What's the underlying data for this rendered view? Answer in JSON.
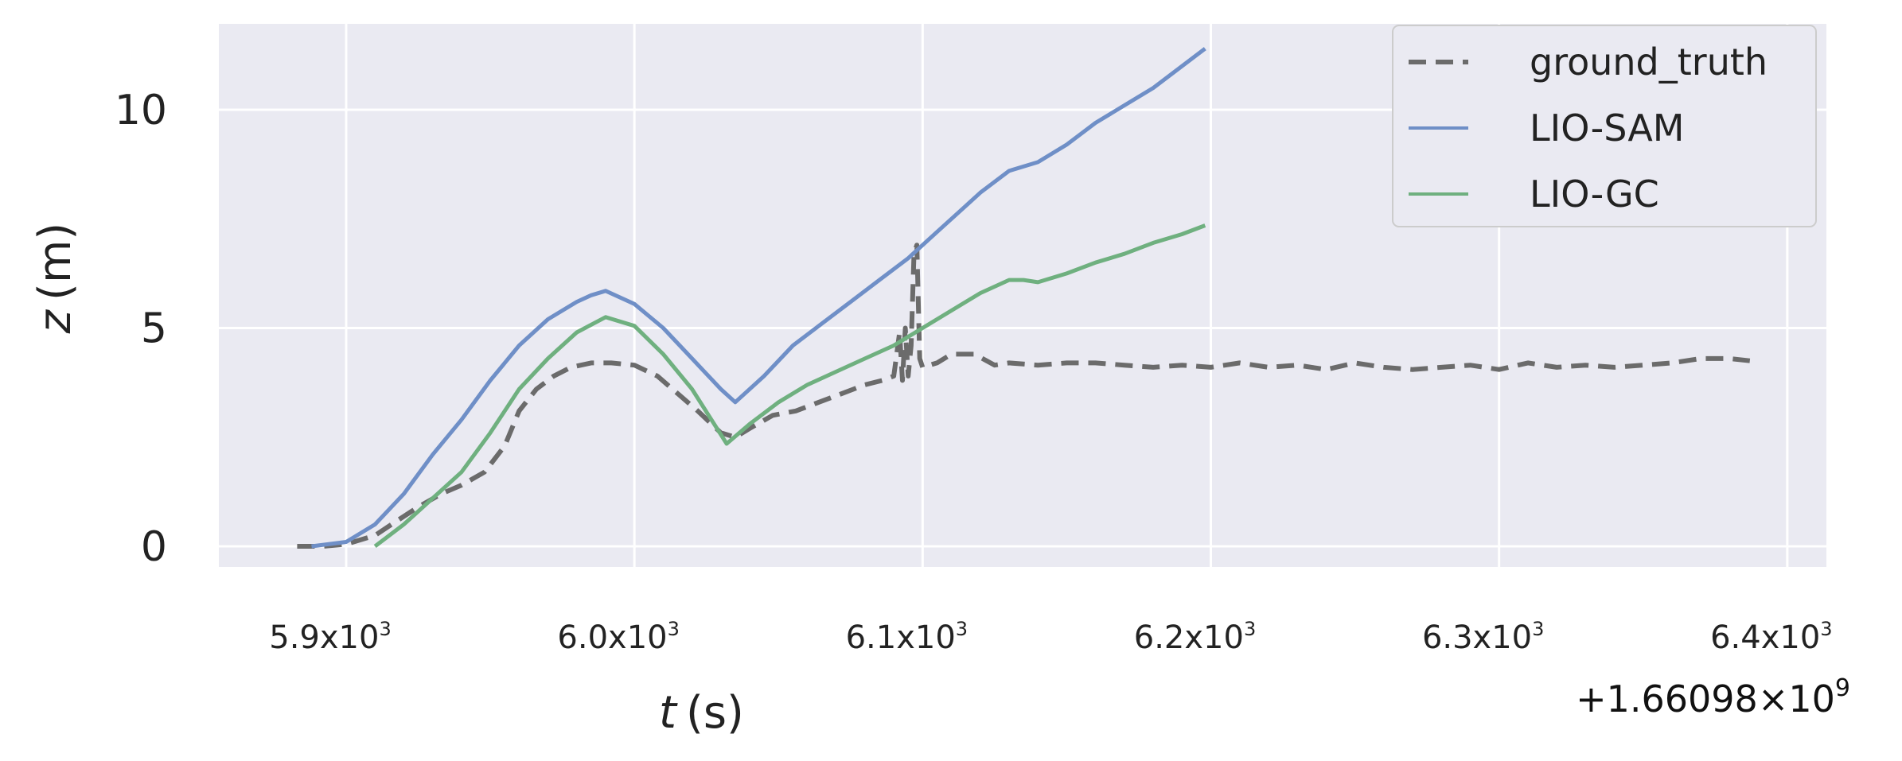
{
  "chart_data": {
    "type": "line",
    "xlabel": "t (s)",
    "xlabel_var": "t",
    "xlabel_unit": "(s)",
    "ylabel": "z (m)",
    "ylabel_var": "z",
    "ylabel_unit": "(m)",
    "x_offset_label": "+1.66098×10",
    "x_offset_exp": "9",
    "xlim": [
      5860,
      6410
    ],
    "ylim": [
      -0.5,
      12.0
    ],
    "grid": true,
    "legend_position": "top-right",
    "y_ticks": [
      {
        "value": 0,
        "label": "0"
      },
      {
        "value": 5,
        "label": "5"
      },
      {
        "value": 10,
        "label": "10"
      }
    ],
    "x_ticks": [
      {
        "value": 5900,
        "label": "5.9x10",
        "exp": "3"
      },
      {
        "value": 6000,
        "label": "6.0x10",
        "exp": "3"
      },
      {
        "value": 6100,
        "label": "6.1x10",
        "exp": "3"
      },
      {
        "value": 6200,
        "label": "6.2x10",
        "exp": "3"
      },
      {
        "value": 6300,
        "label": "6.3x10",
        "exp": "3"
      },
      {
        "value": 6400,
        "label": "6.4x10",
        "exp": "3"
      }
    ],
    "series": [
      {
        "name": "ground_truth",
        "color": "#6b6b6b",
        "dash": true,
        "x": [
          5883,
          5892,
          5900,
          5910,
          5918,
          5925,
          5933,
          5940,
          5948,
          5955,
          5960,
          5966,
          5972,
          5978,
          5985,
          5992,
          6000,
          6008,
          6015,
          6022,
          6030,
          6035,
          6040,
          6048,
          6056,
          6064,
          6072,
          6080,
          6086,
          6090,
          6092,
          6093,
          6094,
          6095,
          6096,
          6097,
          6098,
          6099,
          6100,
          6105,
          6110,
          6118,
          6125,
          6130,
          6140,
          6150,
          6160,
          6170,
          6180,
          6190,
          6200,
          6210,
          6220,
          6230,
          6240,
          6250,
          6260,
          6270,
          6280,
          6290,
          6300,
          6310,
          6320,
          6330,
          6340,
          6350,
          6360,
          6370,
          6380,
          6387
        ],
        "y": [
          0.0,
          0.0,
          0.05,
          0.25,
          0.6,
          0.9,
          1.2,
          1.4,
          1.7,
          2.3,
          3.1,
          3.6,
          3.9,
          4.1,
          4.2,
          4.2,
          4.15,
          3.9,
          3.5,
          3.1,
          2.6,
          2.5,
          2.7,
          3.0,
          3.1,
          3.3,
          3.5,
          3.7,
          3.8,
          3.9,
          4.9,
          3.8,
          5.0,
          3.9,
          4.6,
          6.7,
          6.9,
          4.3,
          4.1,
          4.2,
          4.4,
          4.4,
          4.15,
          4.2,
          4.15,
          4.2,
          4.2,
          4.15,
          4.1,
          4.15,
          4.1,
          4.2,
          4.1,
          4.15,
          4.05,
          4.2,
          4.1,
          4.05,
          4.1,
          4.15,
          4.05,
          4.2,
          4.1,
          4.15,
          4.1,
          4.15,
          4.2,
          4.3,
          4.3,
          4.25
        ]
      },
      {
        "name": "LIO-SAM",
        "color": "#6f8fc7",
        "dash": false,
        "x": [
          5888,
          5900,
          5910,
          5920,
          5930,
          5940,
          5950,
          5960,
          5970,
          5980,
          5985,
          5990,
          6000,
          6010,
          6020,
          6030,
          6035,
          6045,
          6055,
          6065,
          6075,
          6085,
          6095,
          6105,
          6115,
          6120,
          6130,
          6140,
          6150,
          6160,
          6170,
          6180,
          6190,
          6198
        ],
        "y": [
          0.0,
          0.1,
          0.5,
          1.2,
          2.1,
          2.9,
          3.8,
          4.6,
          5.2,
          5.6,
          5.75,
          5.85,
          5.55,
          5.0,
          4.3,
          3.6,
          3.3,
          3.9,
          4.6,
          5.1,
          5.6,
          6.1,
          6.6,
          7.2,
          7.8,
          8.1,
          8.6,
          8.8,
          9.2,
          9.7,
          10.1,
          10.5,
          11.0,
          11.4
        ]
      },
      {
        "name": "LIO-GC",
        "color": "#6fb07f",
        "dash": false,
        "x": [
          5910,
          5920,
          5930,
          5940,
          5950,
          5960,
          5970,
          5980,
          5990,
          6000,
          6010,
          6020,
          6032,
          6040,
          6050,
          6060,
          6070,
          6080,
          6090,
          6100,
          6110,
          6120,
          6130,
          6135,
          6140,
          6150,
          6160,
          6170,
          6180,
          6190,
          6198
        ],
        "y": [
          0.0,
          0.5,
          1.1,
          1.7,
          2.6,
          3.6,
          4.3,
          4.9,
          5.25,
          5.05,
          4.4,
          3.6,
          2.35,
          2.8,
          3.3,
          3.7,
          4.0,
          4.3,
          4.6,
          5.0,
          5.4,
          5.8,
          6.1,
          6.1,
          6.05,
          6.25,
          6.5,
          6.7,
          6.95,
          7.15,
          7.35
        ]
      }
    ]
  }
}
